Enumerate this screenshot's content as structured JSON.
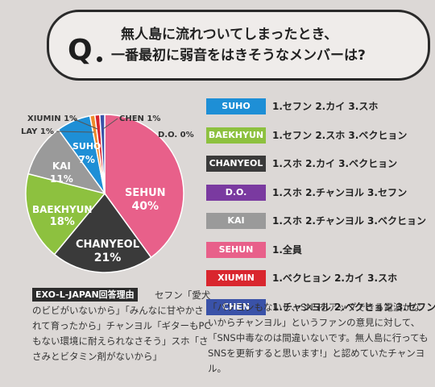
{
  "question": {
    "mark": "Q",
    "line1": "無人島に流れついてしまったとき、",
    "line2": "一番最初に弱音をはきそうなメンバーは?"
  },
  "chart_data": {
    "type": "pie",
    "unit": "%",
    "slices": [
      {
        "label": "SEHUN",
        "value": 40,
        "color": "#e8608a"
      },
      {
        "label": "CHANYEOL",
        "value": 21,
        "color": "#3a3a3a"
      },
      {
        "label": "BAEKHYUN",
        "value": 18,
        "color": "#8dc13f"
      },
      {
        "label": "KAI",
        "value": 11,
        "color": "#9a9a9a"
      },
      {
        "label": "SUHO",
        "value": 7,
        "color": "#1e8fd6"
      },
      {
        "label": "LAY",
        "value": 1,
        "color": "#ef8a2a"
      },
      {
        "label": "XIUMIN",
        "value": 1,
        "color": "#d9262e"
      },
      {
        "label": "CHEN",
        "value": 1,
        "color": "#3a52a8"
      },
      {
        "label": "D.O.",
        "value": 0,
        "color": "#7a3aa0"
      }
    ]
  },
  "labels": {
    "sehun": {
      "name": "SEHUN",
      "pct": "40%"
    },
    "chanyeol": {
      "name": "CHANYEOL",
      "pct": "21%"
    },
    "baekhyun": {
      "name": "BAEKHYUN",
      "pct": "18%"
    },
    "kai": {
      "name": "KAI",
      "pct": "11%"
    },
    "suho": {
      "name": "SUHO",
      "pct": "7%"
    },
    "xiumin": "XIUMIN 1%",
    "lay": "LAY 1%",
    "chen": "CHEN 1%",
    "do": "D.O. 0%"
  },
  "answers": [
    {
      "name": "SUHO",
      "color": "#1e8fd6",
      "text": "1.セフン 2.カイ 3.スホ"
    },
    {
      "name": "BAEKHYUN",
      "color": "#8dc13f",
      "text": "1.セフン 2.スホ 3.ベクヒョン"
    },
    {
      "name": "CHANYEOL",
      "color": "#3a3a3a",
      "text": "1.スホ 2.カイ 3.ベクヒョン"
    },
    {
      "name": "D.O.",
      "color": "#7a3aa0",
      "text": "1.スホ 2.チャンヨル 3.セフン"
    },
    {
      "name": "KAI",
      "color": "#9a9a9a",
      "text": "1.スホ 2.チャンヨル 3.ベクヒョン"
    },
    {
      "name": "SEHUN",
      "color": "#e8608a",
      "text": "1.全員"
    },
    {
      "name": "XIUMIN",
      "color": "#d9262e",
      "text": "1.ベクヒョン 2.カイ 3.スホ"
    },
    {
      "name": "CHEN",
      "color": "#3a52a8",
      "text": "1.チャンヨル 2.ベクヒョン 3.セフン"
    }
  ],
  "reason": {
    "heading": "EXO-L-JAPAN回答理由",
    "body": "セフン「愛犬のビビがいないから」「みんなに甘やかされて育ったから」チャンヨル「ギターもPCもない環境に耐えられなさそう」スホ「ささみとビタミン剤がないから」"
  },
  "quote": "「パソコンもないし、SNSをアップできる電波がないからチャンヨル」というファンの意見に対して、「SNS中毒なのは間違いないです。無人島に行ってもSNSを更新すると思います!」と認めていたチャンヨル。"
}
